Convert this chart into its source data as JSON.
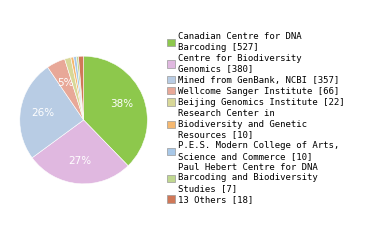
{
  "labels": [
    "Canadian Centre for DNA\nBarcoding [527]",
    "Centre for Biodiversity\nGenomics [380]",
    "Mined from GenBank, NCBI [357]",
    "Wellcome Sanger Institute [66]",
    "Beijing Genomics Institute [22]",
    "Research Center in\nBiodiversity and Genetic\nResources [10]",
    "P.E.S. Modern College of Arts,\nScience and Commerce [10]",
    "Paul Hebert Centre for DNA\nBarcoding and Biodiversity\nStudies [7]",
    "13 Others [18]"
  ],
  "values": [
    527,
    380,
    357,
    66,
    22,
    10,
    10,
    7,
    18
  ],
  "colors": [
    "#8dc84c",
    "#e0b8e0",
    "#b8cce4",
    "#e8a898",
    "#d8d898",
    "#f5b870",
    "#a8c8e8",
    "#c0d890",
    "#d07858"
  ],
  "figsize": [
    3.8,
    2.4
  ],
  "dpi": 100,
  "legend_fontsize": 6.5,
  "pct_fontsize": 7.5,
  "pct_threshold": 4.0
}
